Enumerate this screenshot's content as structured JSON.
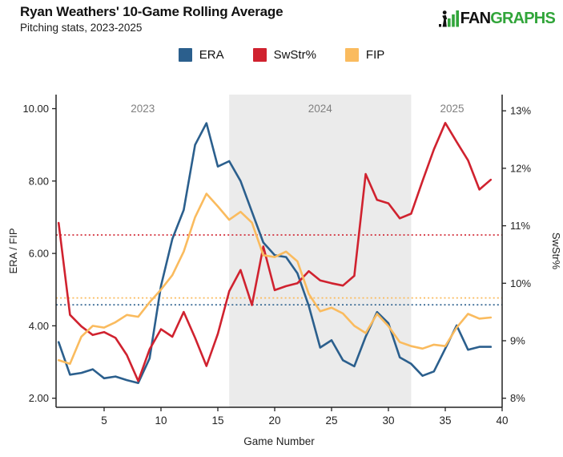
{
  "header": {
    "title": "Ryan Weathers' 10-Game Rolling Average",
    "subtitle": "Pitching stats, 2023-2025",
    "logo": {
      "prefix": ".",
      "fan": "FAN",
      "graphs": "GRAPHS"
    }
  },
  "legend": [
    {
      "label": "ERA",
      "color": "#2B5F8D"
    },
    {
      "label": "SwStr%",
      "color": "#D0222F"
    },
    {
      "label": "FIP",
      "color": "#FABB5E"
    }
  ],
  "colors": {
    "blue": "#2B5F8D",
    "red": "#D0222F",
    "orange": "#FABB5E",
    "band": "#EBEBEB",
    "axis": "#222222",
    "tick_text": "#222222",
    "year_label": "#808080",
    "green": "#31A53A"
  },
  "chart_data": {
    "type": "line",
    "title": "Ryan Weathers' 10-Game Rolling Average",
    "subtitle": "Pitching stats, 2023-2025",
    "x": [
      1,
      2,
      3,
      4,
      5,
      6,
      7,
      8,
      9,
      10,
      11,
      12,
      13,
      14,
      15,
      16,
      17,
      18,
      19,
      20,
      21,
      22,
      23,
      24,
      25,
      26,
      27,
      28,
      29,
      30,
      31,
      32,
      33,
      34,
      35,
      36,
      37,
      38,
      39
    ],
    "series": [
      {
        "name": "ERA",
        "axis": "left",
        "color": "#2B5F8D",
        "values": [
          3.55,
          2.65,
          2.7,
          2.8,
          2.55,
          2.6,
          2.5,
          2.42,
          3.1,
          5.1,
          6.4,
          7.2,
          9.0,
          9.6,
          8.4,
          8.55,
          8.0,
          7.15,
          6.3,
          5.95,
          5.9,
          5.45,
          4.55,
          3.4,
          3.6,
          3.05,
          2.88,
          3.7,
          4.38,
          4.07,
          3.13,
          2.95,
          2.62,
          2.74,
          3.37,
          4.01,
          3.34,
          3.42,
          3.42
        ]
      },
      {
        "name": "SwStr%",
        "axis": "right",
        "color": "#D0222F",
        "values": [
          11.05,
          9.45,
          9.25,
          9.1,
          9.15,
          9.05,
          8.75,
          8.3,
          8.85,
          9.2,
          9.07,
          9.5,
          9.05,
          8.56,
          9.12,
          9.86,
          10.23,
          9.62,
          10.64,
          9.88,
          9.95,
          10.0,
          10.21,
          10.05,
          10.0,
          9.96,
          10.13,
          11.9,
          11.45,
          11.39,
          11.13,
          11.21,
          11.78,
          12.33,
          12.79,
          12.46,
          12.14,
          11.63,
          11.8
        ]
      },
      {
        "name": "FIP",
        "axis": "left",
        "color": "#FABB5E",
        "values": [
          3.05,
          2.95,
          3.7,
          4.0,
          3.95,
          4.1,
          4.3,
          4.25,
          4.65,
          5.0,
          5.4,
          6.05,
          7.0,
          7.65,
          7.3,
          6.93,
          7.15,
          6.85,
          5.95,
          5.9,
          6.05,
          5.78,
          4.88,
          4.4,
          4.5,
          4.34,
          4.0,
          3.8,
          4.33,
          3.99,
          3.55,
          3.44,
          3.37,
          3.48,
          3.44,
          3.95,
          4.33,
          4.2,
          4.23
        ]
      }
    ],
    "mean_lines": [
      {
        "series": "SwStr%",
        "axis": "right",
        "value": 10.84,
        "color": "#D0222F"
      },
      {
        "series": "FIP",
        "axis": "left",
        "value": 4.77,
        "color": "#FABB5E"
      },
      {
        "series": "ERA",
        "axis": "left",
        "value": 4.58,
        "color": "#2B5F8D"
      }
    ],
    "left_axis": {
      "label": "ERA / FIP",
      "tick_labels": [
        "2.00",
        "4.00",
        "6.00",
        "8.00",
        "10.00"
      ],
      "tick_values": [
        2,
        4,
        6,
        8,
        10
      ],
      "range": [
        1.749,
        10.388
      ]
    },
    "right_axis": {
      "label": "SwStr%",
      "tick_labels": [
        "8%",
        "9%",
        "10%",
        "11%",
        "12%",
        "13%"
      ],
      "tick_values": [
        8,
        9,
        10,
        11,
        12,
        13
      ],
      "range": [
        7.842,
        13.282
      ]
    },
    "x_axis": {
      "label": "Game Number",
      "tick_labels": [
        "5",
        "10",
        "15",
        "20",
        "25",
        "30",
        "35",
        "40"
      ],
      "tick_values": [
        5,
        10,
        15,
        20,
        25,
        30,
        35,
        40
      ],
      "range": [
        0.7746,
        40
      ]
    },
    "bands": [
      {
        "x0": 16,
        "x1": 32
      }
    ],
    "year_labels": [
      {
        "text": "2023",
        "x": 8.4
      },
      {
        "text": "2024",
        "x": 24.0
      },
      {
        "text": "2025",
        "x": 35.6
      }
    ],
    "grid": false,
    "legend_position": "top"
  }
}
